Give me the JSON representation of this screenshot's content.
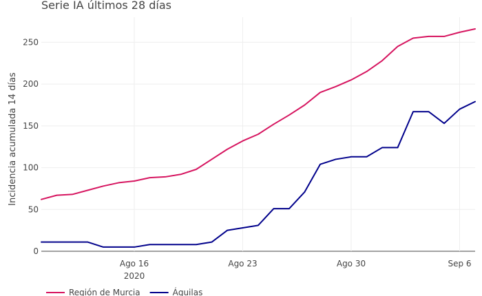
{
  "chart_data": {
    "type": "line",
    "title": "Serie IA últimos 28 días",
    "ylabel": "Incidencia acumulada 14 días",
    "xlabel": "",
    "x": [
      "2020-08-10",
      "2020-08-11",
      "2020-08-12",
      "2020-08-13",
      "2020-08-14",
      "2020-08-15",
      "2020-08-16",
      "2020-08-17",
      "2020-08-18",
      "2020-08-19",
      "2020-08-20",
      "2020-08-21",
      "2020-08-22",
      "2020-08-23",
      "2020-08-24",
      "2020-08-25",
      "2020-08-26",
      "2020-08-27",
      "2020-08-28",
      "2020-08-29",
      "2020-08-30",
      "2020-08-31",
      "2020-09-01",
      "2020-09-02",
      "2020-09-03",
      "2020-09-04",
      "2020-09-05",
      "2020-09-06",
      "2020-09-07"
    ],
    "xlim": [
      "2020-08-10",
      "2020-09-07"
    ],
    "ylim": [
      0,
      280
    ],
    "y_ticks": [
      0,
      50,
      100,
      150,
      200,
      250
    ],
    "x_ticks": [
      {
        "date": "2020-08-16",
        "label": "Ago 16",
        "sublabel": "2020"
      },
      {
        "date": "2020-08-23",
        "label": "Ago 23",
        "sublabel": ""
      },
      {
        "date": "2020-08-30",
        "label": "Ago 30",
        "sublabel": ""
      },
      {
        "date": "2020-09-06",
        "label": "Sep 6",
        "sublabel": ""
      }
    ],
    "grid": true,
    "legend_position": "bottom-left",
    "series": [
      {
        "name": "Región de Murcia",
        "color": "#d6145f",
        "values": [
          62,
          67,
          68,
          73,
          78,
          82,
          84,
          88,
          89,
          92,
          98,
          110,
          122,
          132,
          140,
          152,
          163,
          175,
          190,
          197,
          205,
          215,
          228,
          245,
          255,
          257,
          257,
          262,
          266
        ]
      },
      {
        "name": "Águilas",
        "color": "#00008b",
        "values": [
          11,
          11,
          11,
          11,
          5,
          5,
          5,
          8,
          8,
          8,
          8,
          11,
          25,
          28,
          31,
          51,
          51,
          71,
          104,
          110,
          113,
          113,
          124,
          124,
          167,
          167,
          153,
          170,
          179
        ]
      }
    ]
  }
}
